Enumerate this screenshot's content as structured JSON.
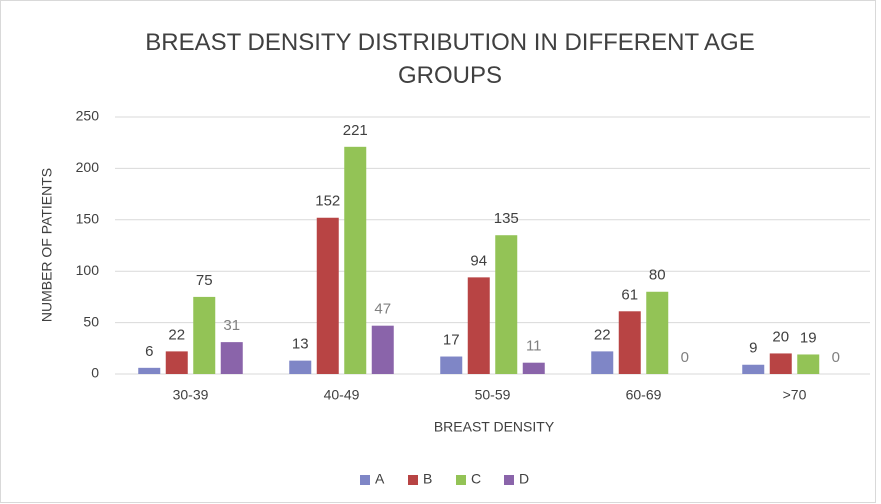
{
  "chart_data": {
    "type": "bar",
    "title": "BREAST DENSITY DISTRIBUTION IN DIFFERENT AGE GROUPS",
    "x_label": "BREAST  DENSITY",
    "y_label": "NUMBER  OF PATIENTS",
    "categories": [
      "30-39",
      "40-49",
      "50-59",
      "60-69",
      ">70"
    ],
    "series": [
      {
        "name": "A",
        "color": "#7f86c6",
        "values": [
          6,
          13,
          17,
          22,
          9
        ]
      },
      {
        "name": "B",
        "color": "#b84444",
        "values": [
          22,
          152,
          94,
          61,
          20
        ]
      },
      {
        "name": "C",
        "color": "#93c356",
        "values": [
          75,
          221,
          135,
          80,
          19
        ]
      },
      {
        "name": "D",
        "color": "#8a64aa",
        "values": [
          31,
          47,
          11,
          0,
          0
        ]
      }
    ],
    "ylim": [
      0,
      250
    ],
    "yticks": [
      0,
      50,
      100,
      150,
      200,
      250
    ],
    "grid": true,
    "legend": "bottom"
  }
}
